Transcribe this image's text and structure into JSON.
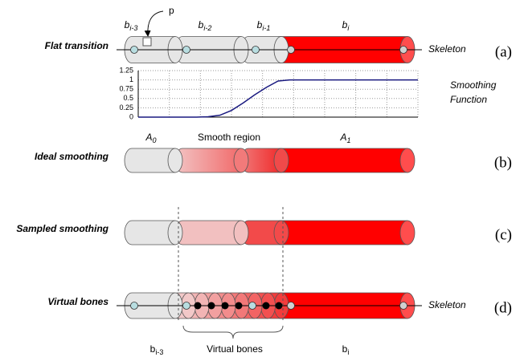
{
  "rows": [
    {
      "label": "Flat transition",
      "tag": "(a)"
    },
    {
      "label": "Ideal smoothing",
      "tag": "(b)"
    },
    {
      "label": "Sampled smoothing",
      "tag": "(c)"
    },
    {
      "label": "Virtual bones",
      "tag": "(d)"
    }
  ],
  "skeleton_labels": [
    "Skeleton",
    "Skeleton"
  ],
  "pointer": "p",
  "bone_labels_top": [
    {
      "base": "b",
      "sub": "i-3"
    },
    {
      "base": "b",
      "sub": "i-2"
    },
    {
      "base": "b",
      "sub": "i-1"
    },
    {
      "base": "b",
      "sub": "i"
    }
  ],
  "smoothing_plot": {
    "type": "line",
    "label": [
      "Smoothing",
      "Function"
    ],
    "color": "#1a1a80",
    "grid": true,
    "ylim": [
      0,
      1.25
    ],
    "yticks": [
      0,
      0.25,
      0.5,
      0.75,
      1,
      1.25
    ],
    "values": [
      0,
      0,
      0,
      0,
      0,
      0,
      0.01,
      0.05,
      0.18,
      0.38,
      0.6,
      0.8,
      0.97,
      1,
      1,
      1,
      1,
      1,
      1,
      1,
      1,
      1,
      1,
      1,
      1
    ]
  },
  "region_labels": [
    {
      "base": "A",
      "sub": "0"
    },
    {
      "text": "Smooth region"
    },
    {
      "base": "A",
      "sub": "1"
    }
  ],
  "bottom_labels": [
    {
      "base": "b",
      "sub": "i-3"
    },
    {
      "text": "Virtual bones"
    },
    {
      "base": "b",
      "sub": "i"
    }
  ]
}
